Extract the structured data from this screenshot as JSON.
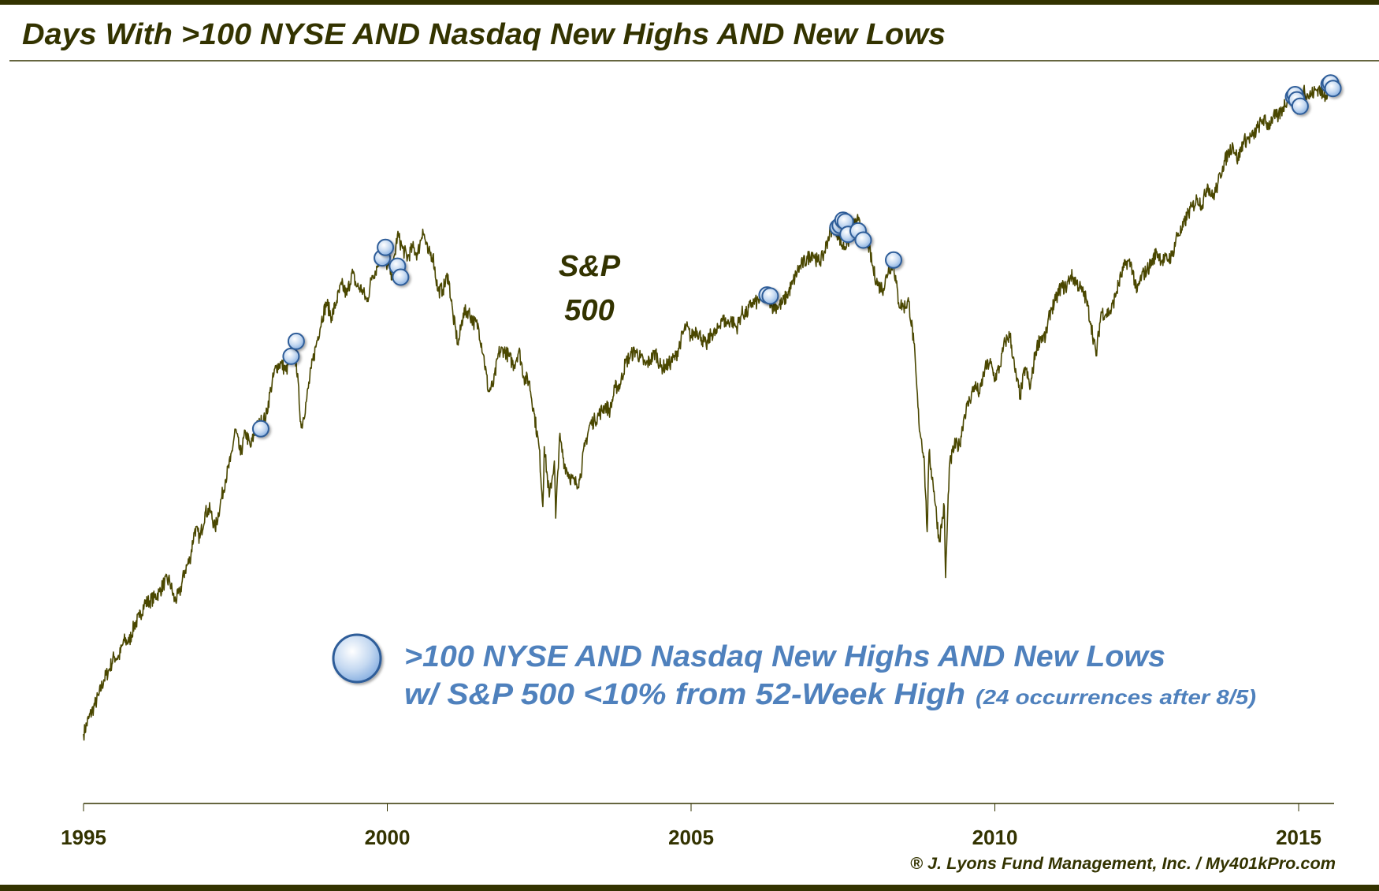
{
  "chart_data": {
    "type": "line",
    "title": "Days With >100 NYSE AND Nasdaq New Highs AND New Lows",
    "series_label": [
      "S&P",
      "500"
    ],
    "legend": {
      "line1": ">100 NYSE AND Nasdaq New Highs AND New Lows",
      "line2": "w/ S&P 500 <10% from 52-Week High",
      "note": "(24 occurrences after 8/5)",
      "placement": "bottom-center"
    },
    "copyright": "® J. Lyons Fund Management, Inc. / My401kPro.com",
    "x_ticks": [
      "1995",
      "2000",
      "2005",
      "2010",
      "2015"
    ],
    "xlim": [
      "1995-01",
      "2015-08"
    ],
    "ylim": [
      400,
      2245
    ],
    "y_scale": "log",
    "grid": false,
    "colors": {
      "line": "#4a4700",
      "marker_fill": "#c5d9f1",
      "marker_edge": "#2e5d99",
      "legend_text": "#4f81bd",
      "title": "#333300",
      "bar": "#333300"
    },
    "series": [
      {
        "name": "S&P 500",
        "points": [
          [
            "1995-01",
            470
          ],
          [
            "1995-02",
            487
          ],
          [
            "1995-03",
            500
          ],
          [
            "1995-04",
            514
          ],
          [
            "1995-05",
            533
          ],
          [
            "1995-06",
            545
          ],
          [
            "1995-07",
            562
          ],
          [
            "1995-08",
            562
          ],
          [
            "1995-09",
            584
          ],
          [
            "1995-10",
            582
          ],
          [
            "1995-11",
            605
          ],
          [
            "1995-12",
            616
          ],
          [
            "1996-01",
            636
          ],
          [
            "1996-02",
            640
          ],
          [
            "1996-03",
            645
          ],
          [
            "1996-04",
            654
          ],
          [
            "1996-05",
            669
          ],
          [
            "1996-06",
            671
          ],
          [
            "1996-07",
            640
          ],
          [
            "1996-08",
            652
          ],
          [
            "1996-09",
            687
          ],
          [
            "1996-10",
            705
          ],
          [
            "1996-11",
            757
          ],
          [
            "1996-12",
            741
          ],
          [
            "1997-01",
            786
          ],
          [
            "1997-02",
            791
          ],
          [
            "1997-03",
            757
          ],
          [
            "1997-04",
            801
          ],
          [
            "1997-05",
            848
          ],
          [
            "1997-06",
            885
          ],
          [
            "1997-07",
            954
          ],
          [
            "1997-08",
            899
          ],
          [
            "1997-09",
            947
          ],
          [
            "1997-10",
            915
          ],
          [
            "1997-11",
            955
          ],
          [
            "1997-12",
            970
          ],
          [
            "1998-01",
            980
          ],
          [
            "1998-02",
            1049
          ],
          [
            "1998-03",
            1102
          ],
          [
            "1998-04",
            1112
          ],
          [
            "1998-05",
            1091
          ],
          [
            "1998-06",
            1134
          ],
          [
            "1998-07",
            1121
          ],
          [
            "1998-08",
            957
          ],
          [
            "1998-09",
            1017
          ],
          [
            "1998-10",
            1099
          ],
          [
            "1998-11",
            1164
          ],
          [
            "1998-12",
            1229
          ],
          [
            "1999-01",
            1280
          ],
          [
            "1999-02",
            1238
          ],
          [
            "1999-03",
            1286
          ],
          [
            "1999-04",
            1335
          ],
          [
            "1999-05",
            1302
          ],
          [
            "1999-06",
            1373
          ],
          [
            "1999-07",
            1329
          ],
          [
            "1999-08",
            1320
          ],
          [
            "1999-09",
            1283
          ],
          [
            "1999-10",
            1363
          ],
          [
            "1999-11",
            1389
          ],
          [
            "1999-12",
            1469
          ],
          [
            "2000-01",
            1394
          ],
          [
            "2000-02",
            1366
          ],
          [
            "2000-03",
            1499
          ],
          [
            "2000-04",
            1452
          ],
          [
            "2000-05",
            1421
          ],
          [
            "2000-06",
            1455
          ],
          [
            "2000-07",
            1431
          ],
          [
            "2000-08",
            1518
          ],
          [
            "2000-09",
            1437
          ],
          [
            "2000-10",
            1429
          ],
          [
            "2000-11",
            1315
          ],
          [
            "2000-12",
            1320
          ],
          [
            "2001-01",
            1366
          ],
          [
            "2001-02",
            1240
          ],
          [
            "2001-03",
            1160
          ],
          [
            "2001-04",
            1249
          ],
          [
            "2001-05",
            1256
          ],
          [
            "2001-06",
            1224
          ],
          [
            "2001-07",
            1211
          ],
          [
            "2001-08",
            1134
          ],
          [
            "2001-09",
            1041
          ],
          [
            "2001-10",
            1060
          ],
          [
            "2001-11",
            1139
          ],
          [
            "2001-12",
            1148
          ],
          [
            "2002-01",
            1130
          ],
          [
            "2002-02",
            1107
          ],
          [
            "2002-03",
            1147
          ],
          [
            "2002-04",
            1076
          ],
          [
            "2002-05",
            1067
          ],
          [
            "2002-06",
            990
          ],
          [
            "2002-07",
            912
          ],
          [
            "2002-07-23",
            797
          ],
          [
            "2002-08",
            916
          ],
          [
            "2002-09",
            815
          ],
          [
            "2002-10-09",
            776
          ],
          [
            "2002-10",
            886
          ],
          [
            "2002-11",
            936
          ],
          [
            "2002-12",
            880
          ],
          [
            "2003-01",
            856
          ],
          [
            "2003-02",
            841
          ],
          [
            "2003-03",
            848
          ],
          [
            "2003-04",
            917
          ],
          [
            "2003-05",
            964
          ],
          [
            "2003-06",
            975
          ],
          [
            "2003-07",
            990
          ],
          [
            "2003-08",
            1008
          ],
          [
            "2003-09",
            996
          ],
          [
            "2003-10",
            1051
          ],
          [
            "2003-11",
            1058
          ],
          [
            "2003-12",
            1112
          ],
          [
            "2004-01",
            1131
          ],
          [
            "2004-02",
            1145
          ],
          [
            "2004-03",
            1126
          ],
          [
            "2004-04",
            1107
          ],
          [
            "2004-05",
            1121
          ],
          [
            "2004-06",
            1141
          ],
          [
            "2004-07",
            1102
          ],
          [
            "2004-08",
            1104
          ],
          [
            "2004-09",
            1115
          ],
          [
            "2004-10",
            1130
          ],
          [
            "2004-11",
            1174
          ],
          [
            "2004-12",
            1212
          ],
          [
            "2005-01",
            1181
          ],
          [
            "2005-02",
            1204
          ],
          [
            "2005-03",
            1181
          ],
          [
            "2005-04",
            1157
          ],
          [
            "2005-05",
            1192
          ],
          [
            "2005-06",
            1191
          ],
          [
            "2005-07",
            1234
          ],
          [
            "2005-08",
            1220
          ],
          [
            "2005-09",
            1229
          ],
          [
            "2005-10",
            1207
          ],
          [
            "2005-11",
            1249
          ],
          [
            "2005-12",
            1248
          ],
          [
            "2006-01",
            1280
          ],
          [
            "2006-02",
            1281
          ],
          [
            "2006-03",
            1295
          ],
          [
            "2006-04",
            1311
          ],
          [
            "2006-05",
            1270
          ],
          [
            "2006-06",
            1270
          ],
          [
            "2006-07",
            1277
          ],
          [
            "2006-08",
            1304
          ],
          [
            "2006-09",
            1336
          ],
          [
            "2006-10",
            1378
          ],
          [
            "2006-11",
            1401
          ],
          [
            "2006-12",
            1418
          ],
          [
            "2007-01",
            1438
          ],
          [
            "2007-02",
            1407
          ],
          [
            "2007-03",
            1421
          ],
          [
            "2007-04",
            1482
          ],
          [
            "2007-05",
            1531
          ],
          [
            "2007-06",
            1503
          ],
          [
            "2007-07",
            1455
          ],
          [
            "2007-08",
            1474
          ],
          [
            "2007-09",
            1527
          ],
          [
            "2007-10",
            1549
          ],
          [
            "2007-11",
            1481
          ],
          [
            "2007-12",
            1468
          ],
          [
            "2008-01",
            1379
          ],
          [
            "2008-02",
            1331
          ],
          [
            "2008-03",
            1323
          ],
          [
            "2008-04",
            1386
          ],
          [
            "2008-05",
            1400
          ],
          [
            "2008-06",
            1280
          ],
          [
            "2008-07",
            1267
          ],
          [
            "2008-08",
            1283
          ],
          [
            "2008-09",
            1166
          ],
          [
            "2008-10",
            969
          ],
          [
            "2008-11-20",
            752
          ],
          [
            "2008-11",
            896
          ],
          [
            "2008-12",
            903
          ],
          [
            "2009-01",
            826
          ],
          [
            "2009-02",
            735
          ],
          [
            "2009-03-09",
            676
          ],
          [
            "2009-03",
            798
          ],
          [
            "2009-04",
            873
          ],
          [
            "2009-05",
            919
          ],
          [
            "2009-06",
            919
          ],
          [
            "2009-07",
            987
          ],
          [
            "2009-08",
            1021
          ],
          [
            "2009-09",
            1057
          ],
          [
            "2009-10",
            1036
          ],
          [
            "2009-11",
            1096
          ],
          [
            "2009-12",
            1115
          ],
          [
            "2010-01",
            1074
          ],
          [
            "2010-02",
            1104
          ],
          [
            "2010-03",
            1169
          ],
          [
            "2010-04",
            1187
          ],
          [
            "2010-05",
            1089
          ],
          [
            "2010-06",
            1031
          ],
          [
            "2010-07",
            1102
          ],
          [
            "2010-08",
            1049
          ],
          [
            "2010-09",
            1141
          ],
          [
            "2010-10",
            1183
          ],
          [
            "2010-11",
            1181
          ],
          [
            "2010-12",
            1258
          ],
          [
            "2011-01",
            1286
          ],
          [
            "2011-02",
            1327
          ],
          [
            "2011-03",
            1326
          ],
          [
            "2011-04",
            1364
          ],
          [
            "2011-05",
            1345
          ],
          [
            "2011-06",
            1321
          ],
          [
            "2011-07",
            1292
          ],
          [
            "2011-08",
            1219
          ],
          [
            "2011-09",
            1131
          ],
          [
            "2011-10",
            1253
          ],
          [
            "2011-11",
            1247
          ],
          [
            "2011-12",
            1258
          ],
          [
            "2012-01",
            1312
          ],
          [
            "2012-02",
            1366
          ],
          [
            "2012-03",
            1408
          ],
          [
            "2012-04",
            1398
          ],
          [
            "2012-05",
            1310
          ],
          [
            "2012-06",
            1362
          ],
          [
            "2012-07",
            1379
          ],
          [
            "2012-08",
            1407
          ],
          [
            "2012-09",
            1441
          ],
          [
            "2012-10",
            1412
          ],
          [
            "2012-11",
            1416
          ],
          [
            "2012-12",
            1426
          ],
          [
            "2013-01",
            1498
          ],
          [
            "2013-02",
            1515
          ],
          [
            "2013-03",
            1569
          ],
          [
            "2013-04",
            1598
          ],
          [
            "2013-05",
            1631
          ],
          [
            "2013-06",
            1606
          ],
          [
            "2013-07",
            1686
          ],
          [
            "2013-08",
            1633
          ],
          [
            "2013-09",
            1682
          ],
          [
            "2013-10",
            1757
          ],
          [
            "2013-11",
            1806
          ],
          [
            "2013-12",
            1848
          ],
          [
            "2014-01",
            1783
          ],
          [
            "2014-02",
            1859
          ],
          [
            "2014-03",
            1872
          ],
          [
            "2014-04",
            1884
          ],
          [
            "2014-05",
            1924
          ],
          [
            "2014-06",
            1960
          ],
          [
            "2014-07",
            1931
          ],
          [
            "2014-08",
            1972
          ],
          [
            "2014-09",
            1972
          ],
          [
            "2014-10",
            2018
          ],
          [
            "2014-11",
            2068
          ],
          [
            "2014-12",
            2059
          ],
          [
            "2015-01",
            1995
          ],
          [
            "2015-02",
            2105
          ],
          [
            "2015-03",
            2068
          ],
          [
            "2015-04",
            2086
          ],
          [
            "2015-05",
            2107
          ],
          [
            "2015-06",
            2063
          ],
          [
            "2015-07",
            2104
          ],
          [
            "2015-08",
            2100
          ]
        ]
      }
    ],
    "markers": [
      [
        "1997-12",
        955
      ],
      [
        "1998-06",
        1130
      ],
      [
        "1998-07",
        1170
      ],
      [
        "1999-12",
        1420
      ],
      [
        "1999-12-20",
        1455
      ],
      [
        "2000-03",
        1393
      ],
      [
        "2000-03-20",
        1358
      ],
      [
        "2006-04",
        1303
      ],
      [
        "2006-04-20",
        1300
      ],
      [
        "2007-06",
        1524
      ],
      [
        "2007-06-15",
        1532
      ],
      [
        "2007-07",
        1550
      ],
      [
        "2007-07-15",
        1545
      ],
      [
        "2007-08",
        1500
      ],
      [
        "2007-10",
        1512
      ],
      [
        "2007-11",
        1480
      ],
      [
        "2008-05",
        1413
      ],
      [
        "2014-12",
        2065
      ],
      [
        "2014-12-10",
        2075
      ],
      [
        "2014-12-20",
        2050
      ],
      [
        "2015-01-10",
        2020
      ],
      [
        "2015-07",
        2125
      ],
      [
        "2015-07-10",
        2132
      ],
      [
        "2015-07-25",
        2105
      ]
    ]
  }
}
